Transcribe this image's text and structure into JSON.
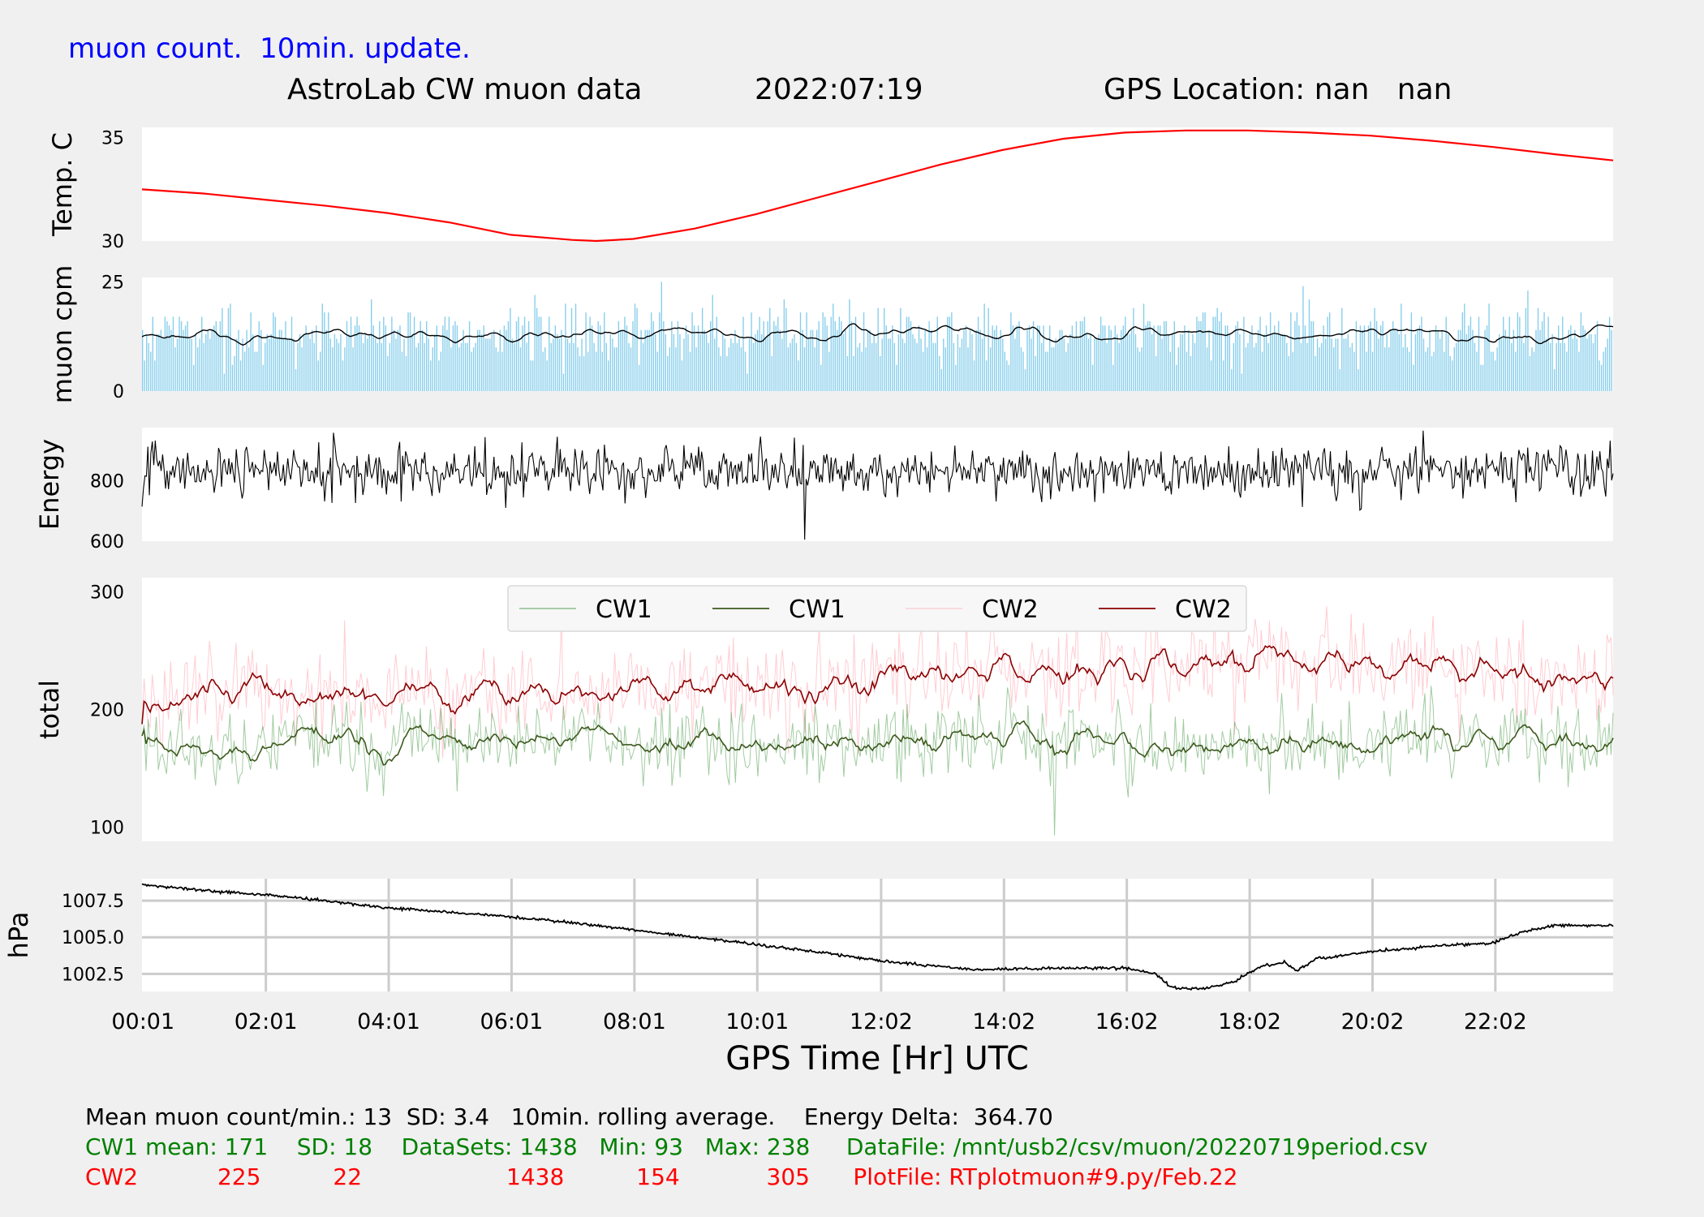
{
  "header": {
    "update_note": "muon count.  10min. update.",
    "title": "AstroLab CW muon data",
    "date": "2022:07:19",
    "gps_location": "GPS Location: nan   nan",
    "note_color": "#0000ff"
  },
  "colors": {
    "temperature": "#ff0000",
    "muon_bars": "#87ceeb",
    "muon_avg": "#000000",
    "energy": "#000000",
    "cw1_raw": "#2e8b2e",
    "cw1_avg": "#3d5a1e",
    "cw2_raw": "#ffb6c1",
    "cw2_avg": "#8b0000",
    "pressure": "#000000",
    "grid": "#cccccc",
    "status_black": "#000000",
    "status_green": "#008000",
    "status_red": "#ff0000"
  },
  "chart_data": [
    {
      "type": "line",
      "ylabel": "Temp. C",
      "ylim": [
        30,
        35.5
      ],
      "yticks": [
        "30",
        "35"
      ],
      "ytick_values": [
        30,
        35
      ],
      "series": [
        {
          "values": [
            [
              0,
              32.5
            ],
            [
              1,
              32.3
            ],
            [
              2,
              32.0
            ],
            [
              3,
              31.7
            ],
            [
              4,
              31.35
            ],
            [
              5,
              30.9
            ],
            [
              6,
              30.3
            ],
            [
              7,
              30.05
            ],
            [
              7.4,
              30.0
            ],
            [
              8,
              30.1
            ],
            [
              9,
              30.6
            ],
            [
              10,
              31.3
            ],
            [
              11,
              32.1
            ],
            [
              12,
              32.9
            ],
            [
              13,
              33.7
            ],
            [
              14,
              34.4
            ],
            [
              15,
              34.95
            ],
            [
              16,
              35.25
            ],
            [
              17,
              35.35
            ],
            [
              18,
              35.35
            ],
            [
              19,
              35.25
            ],
            [
              20,
              35.1
            ],
            [
              21,
              34.85
            ],
            [
              22,
              34.55
            ],
            [
              23,
              34.2
            ],
            [
              23.95,
              33.9
            ]
          ]
        }
      ]
    },
    {
      "type": "bar",
      "ylabel": "muon cpm",
      "ylim": [
        0,
        26
      ],
      "yticks": [
        "0",
        "25"
      ],
      "ytick_values": [
        0,
        25
      ],
      "series": [
        {
          "kind": "per-minute counts",
          "mean": 13,
          "sd": 3.4,
          "max": 25
        },
        {
          "kind": "10min. rolling average",
          "mean": 13,
          "sd": 1.2
        }
      ]
    },
    {
      "type": "line",
      "ylabel": "Energy",
      "ylim": [
        600,
        975
      ],
      "yticks": [
        "600",
        "800"
      ],
      "ytick_values": [
        600,
        800
      ],
      "series": [
        {
          "mean": 830,
          "sd": 55,
          "min": 605,
          "max": 965
        }
      ]
    },
    {
      "type": "line",
      "ylabel": "total",
      "ylim": [
        88,
        312
      ],
      "yticks": [
        "100",
        "200",
        "300"
      ],
      "ytick_values": [
        100,
        200,
        300
      ],
      "legend": {
        "position": "top-center",
        "entries": [
          "CW1",
          "CW1",
          "CW2",
          "CW2"
        ]
      },
      "series": [
        {
          "name": "CW1",
          "kind": "raw",
          "mean": 171,
          "sd": 18,
          "min": 93,
          "max": 238
        },
        {
          "name": "CW1",
          "kind": "10min. rolling average",
          "mean": 171
        },
        {
          "name": "CW2",
          "kind": "raw",
          "mean": 225,
          "sd": 22,
          "min": 154,
          "max": 305
        },
        {
          "name": "CW2",
          "kind": "10min. rolling average",
          "trend": [
            [
              0,
              213
            ],
            [
              4,
              215
            ],
            [
              8,
              218
            ],
            [
              11,
              222
            ],
            [
              14,
              229
            ],
            [
              16,
              236
            ],
            [
              18,
              243
            ],
            [
              19.5,
              240
            ],
            [
              22,
              230
            ],
            [
              23.95,
              222
            ]
          ]
        }
      ]
    },
    {
      "type": "line",
      "ylabel": "hPa",
      "xlabel": "GPS Time  [Hr] UTC",
      "ylim": [
        1001.3,
        1009.0
      ],
      "grid": true,
      "yticks": [
        "1002.5",
        "1005.0",
        "1007.5"
      ],
      "ytick_values": [
        1002.5,
        1005.0,
        1007.5
      ],
      "xticks": [
        "00:01",
        "02:01",
        "04:01",
        "06:01",
        "08:01",
        "10:01",
        "12:02",
        "14:02",
        "16:02",
        "18:02",
        "20:02",
        "22:02"
      ],
      "xtick_values": [
        0.0167,
        2.0167,
        4.0167,
        6.0167,
        8.0167,
        10.0167,
        12.033,
        14.033,
        16.033,
        18.033,
        20.033,
        22.033
      ],
      "xlim": [
        0,
        23.95
      ],
      "series": [
        {
          "values": [
            [
              0,
              1008.6
            ],
            [
              1,
              1008.2
            ],
            [
              2,
              1007.9
            ],
            [
              3,
              1007.5
            ],
            [
              4,
              1007.0
            ],
            [
              5,
              1006.7
            ],
            [
              6,
              1006.4
            ],
            [
              7,
              1006.0
            ],
            [
              8,
              1005.5
            ],
            [
              9,
              1005.0
            ],
            [
              10,
              1004.5
            ],
            [
              11,
              1004.0
            ],
            [
              12,
              1003.4
            ],
            [
              13,
              1003.0
            ],
            [
              13.5,
              1002.8
            ],
            [
              14,
              1002.8
            ],
            [
              15,
              1002.9
            ],
            [
              16,
              1002.9
            ],
            [
              16.5,
              1002.5
            ],
            [
              16.8,
              1001.5
            ],
            [
              17.3,
              1001.5
            ],
            [
              17.8,
              1002.0
            ],
            [
              18.2,
              1003.0
            ],
            [
              18.6,
              1003.3
            ],
            [
              18.8,
              1002.7
            ],
            [
              19.1,
              1003.5
            ],
            [
              20,
              1004.0
            ],
            [
              21,
              1004.4
            ],
            [
              22,
              1004.6
            ],
            [
              22.5,
              1005.4
            ],
            [
              23,
              1005.8
            ],
            [
              23.95,
              1005.8
            ]
          ]
        }
      ]
    }
  ],
  "status": {
    "line1": "Mean muon count/min.: 13  SD: 3.4   10min. rolling average.    Energy Delta:  364.70",
    "line2": "CW1 mean: 171    SD: 18    DataSets: 1438   Min: 93   Max: 238     DataFile: /mnt/usb2/csv/muon/20220719period.csv",
    "line3": "CW2           225          22                    1438          154            305      PlotFile: RTplotmuon#9.py/Feb.22"
  }
}
